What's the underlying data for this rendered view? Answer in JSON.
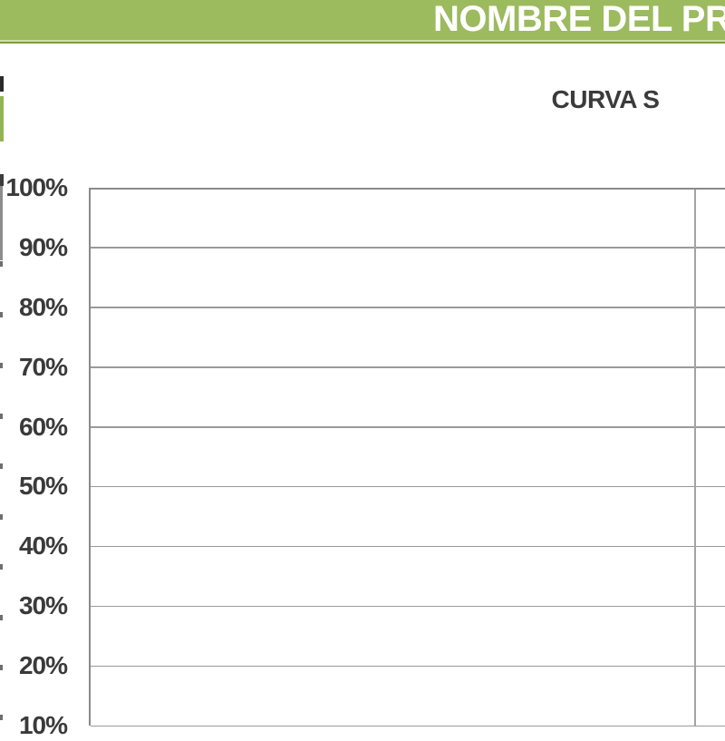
{
  "header": {
    "title_visible": "NOMBRE DEL PR",
    "bg_color": "#9cba5e",
    "edge_color": "#7d9c42",
    "text_color": "#ffffff"
  },
  "chart_data": {
    "type": "line",
    "title": "CURVA S",
    "series": [],
    "y_axis": {
      "tick_labels": [
        "100%",
        "90%",
        "80%",
        "70%",
        "60%",
        "50%",
        "40%",
        "30%",
        "20%",
        "10%"
      ],
      "max": "100%",
      "min_visible": "10%"
    },
    "x_axis": {
      "tick_labels": []
    },
    "layout": {
      "grid_horizontal": true,
      "grid_vertical": true,
      "legend": "none",
      "plot_border_color": "#8a8a8a",
      "gridline_color": "#9a9a9a",
      "note_visible_state": "empty plot area, no data series drawn"
    }
  },
  "left_edge_fragments": {
    "description": "cropped slivers of adjacent sheet content",
    "colors": [
      "#2b2b2b",
      "#92b551",
      "#8d8d8d"
    ]
  }
}
